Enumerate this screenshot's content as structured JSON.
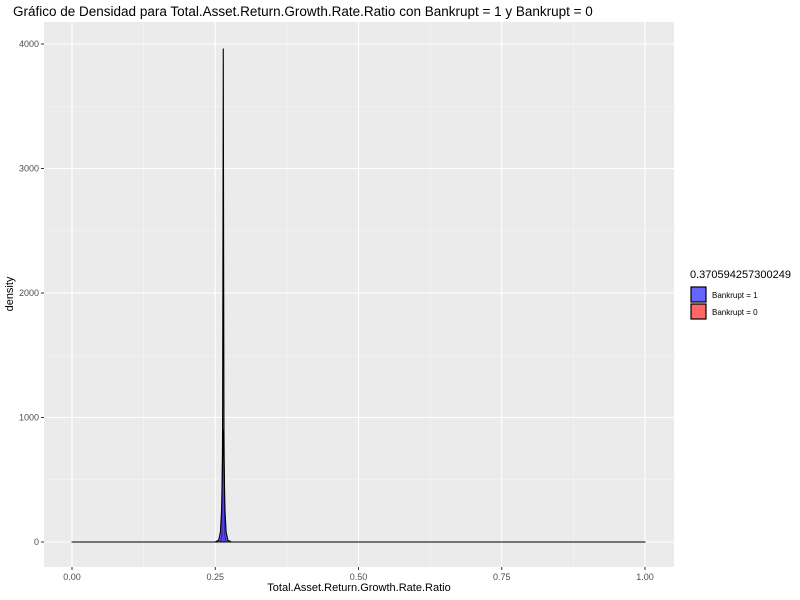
{
  "chart_data": {
    "type": "area",
    "title": "Gráfico de Densidad para Total.Asset.Return.Growth.Rate.Ratio con Bankrupt = 1 y Bankrupt = 0",
    "xlabel": "Total.Asset.Return.Growth.Rate.Ratio",
    "ylabel": "density",
    "xlim": [
      0,
      1
    ],
    "ylim": [
      0,
      4000
    ],
    "x_ticks": [
      "0.00",
      "0.25",
      "0.50",
      "0.75",
      "1.00"
    ],
    "x_tick_values": [
      0,
      0.25,
      0.5,
      0.75,
      1.0
    ],
    "y_ticks": [
      "0",
      "1000",
      "2000",
      "3000",
      "4000"
    ],
    "y_tick_values": [
      0,
      1000,
      2000,
      3000,
      4000
    ],
    "grid": true,
    "legend_placement": "right",
    "legend_title": "0.370594257300249",
    "series": [
      {
        "name": "Bankrupt = 1",
        "color": "#3333ff",
        "peak_x": 0.264,
        "peak_y": 900,
        "x": [
          0.0,
          0.25,
          0.256,
          0.259,
          0.261,
          0.2625,
          0.264,
          0.2655,
          0.267,
          0.269,
          0.272,
          0.278,
          0.3,
          1.0
        ],
        "y": [
          0,
          0,
          15,
          80,
          250,
          600,
          900,
          600,
          250,
          80,
          15,
          0,
          0,
          0
        ]
      },
      {
        "name": "Bankrupt = 0",
        "color": "#ff3333",
        "peak_x": 0.264,
        "peak_y": 3960,
        "x": [
          0.0,
          0.259,
          0.2615,
          0.2628,
          0.2635,
          0.264,
          0.2645,
          0.2652,
          0.2665,
          0.269,
          1.0
        ],
        "y": [
          0,
          0,
          60,
          900,
          2600,
          3960,
          2600,
          900,
          60,
          0,
          0
        ]
      }
    ]
  }
}
